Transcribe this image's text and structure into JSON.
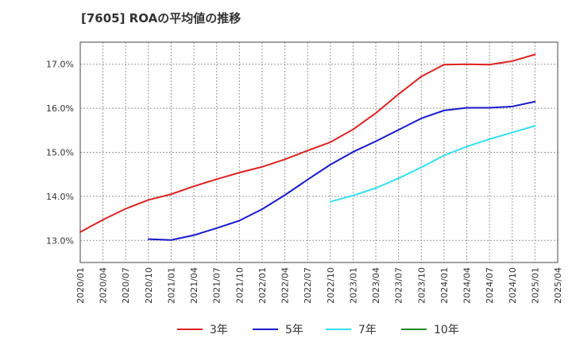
{
  "chart_data": {
    "type": "line",
    "title": "[7605]  ROAの平均値の推移",
    "xlabel": "",
    "ylabel": "",
    "x_ticks": [
      "2020/01",
      "2020/04",
      "2020/07",
      "2020/10",
      "2021/01",
      "2021/04",
      "2021/07",
      "2021/10",
      "2022/01",
      "2022/04",
      "2022/07",
      "2022/10",
      "2023/01",
      "2023/04",
      "2023/07",
      "2023/10",
      "2024/01",
      "2024/04",
      "2024/07",
      "2024/10",
      "2025/01",
      "2025/04"
    ],
    "y_ticks": [
      13.0,
      14.0,
      15.0,
      16.0,
      17.0
    ],
    "y_tick_labels": [
      "13.0%",
      "14.0%",
      "15.0%",
      "16.0%",
      "17.0%"
    ],
    "ylim": [
      12.5,
      17.5
    ],
    "grid": true,
    "legend_position": "bottom",
    "series": [
      {
        "name": "3年",
        "color": "#dd2222",
        "x": [
          "2020/01",
          "2020/04",
          "2020/07",
          "2020/10",
          "2021/01",
          "2021/04",
          "2021/07",
          "2021/10",
          "2022/01",
          "2022/04",
          "2022/07",
          "2022/10",
          "2023/01",
          "2023/04",
          "2023/07",
          "2023/10",
          "2024/01",
          "2024/04",
          "2024/07",
          "2024/10",
          "2025/01"
        ],
        "values": [
          13.19,
          13.47,
          13.72,
          13.92,
          14.05,
          14.23,
          14.39,
          14.54,
          14.67,
          14.84,
          15.04,
          15.23,
          15.52,
          15.89,
          16.32,
          16.72,
          16.99,
          17.0,
          16.99,
          17.07,
          17.22
        ]
      },
      {
        "name": "5年",
        "color": "#1a1acc",
        "x": [
          "2020/10",
          "2021/01",
          "2021/04",
          "2021/07",
          "2021/10",
          "2022/01",
          "2022/04",
          "2022/07",
          "2022/10",
          "2023/01",
          "2023/04",
          "2023/07",
          "2023/10",
          "2024/01",
          "2024/04",
          "2024/07",
          "2024/10",
          "2025/01"
        ],
        "values": [
          13.03,
          13.01,
          13.12,
          13.28,
          13.45,
          13.71,
          14.03,
          14.38,
          14.72,
          15.01,
          15.25,
          15.51,
          15.77,
          15.95,
          16.01,
          16.01,
          16.04,
          16.15
        ]
      },
      {
        "name": "7年",
        "color": "#33e0f0",
        "x": [
          "2022/10",
          "2023/01",
          "2023/04",
          "2023/07",
          "2023/10",
          "2024/01",
          "2024/04",
          "2024/07",
          "2024/10",
          "2025/01"
        ],
        "values": [
          13.88,
          14.02,
          14.19,
          14.41,
          14.66,
          14.93,
          15.13,
          15.3,
          15.45,
          15.6
        ]
      },
      {
        "name": "10年",
        "color": "#228822",
        "x": [],
        "values": []
      }
    ]
  }
}
